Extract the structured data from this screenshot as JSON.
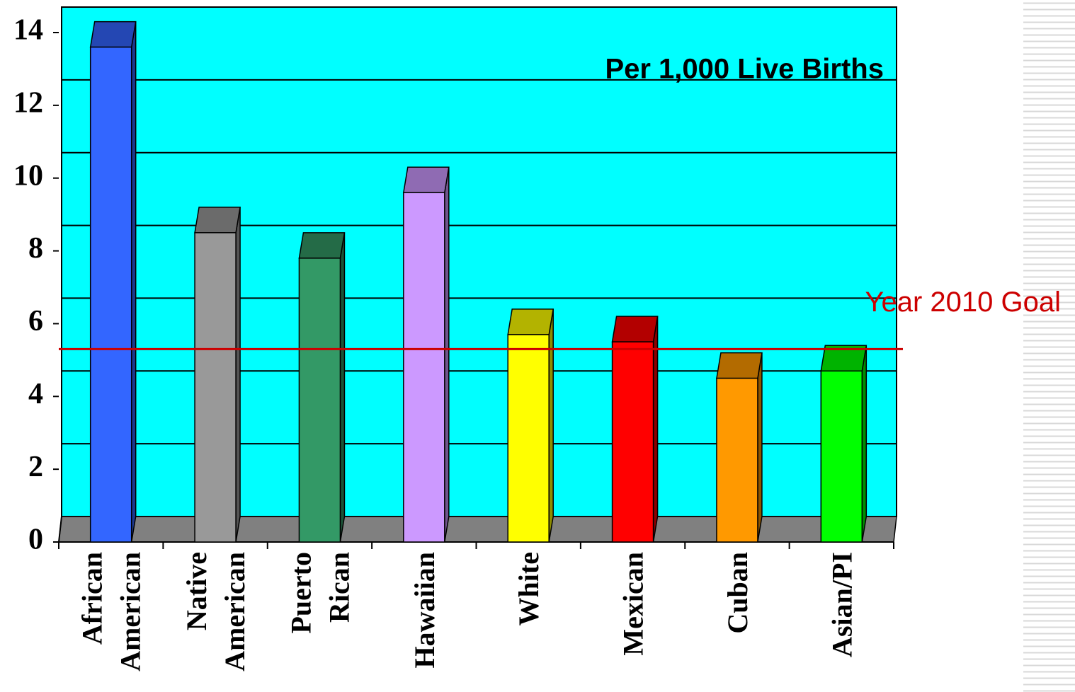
{
  "chart_data": {
    "type": "bar3d",
    "subtitle": "Per 1,000 Live Births",
    "categories": [
      "African American",
      "Native American",
      "Puerto Rican",
      "Hawaiian",
      "White",
      "Mexican",
      "Cuban",
      "Asian/PI"
    ],
    "values": [
      13.6,
      8.5,
      7.8,
      9.6,
      5.7,
      5.5,
      4.5,
      4.7
    ],
    "colors": [
      "#3366ff",
      "#999999",
      "#339966",
      "#cc99ff",
      "#ffff00",
      "#ff0000",
      "#ff9900",
      "#00ff00"
    ],
    "ylim": [
      0,
      14
    ],
    "yticks": [
      0,
      2,
      4,
      6,
      8,
      10,
      12,
      14
    ],
    "grid": true,
    "wall_color": "#00ffff",
    "floor_color": "#808080",
    "goal": {
      "label": "Year 2010 Goal",
      "value": 5.3,
      "color": "#cc0000"
    }
  }
}
